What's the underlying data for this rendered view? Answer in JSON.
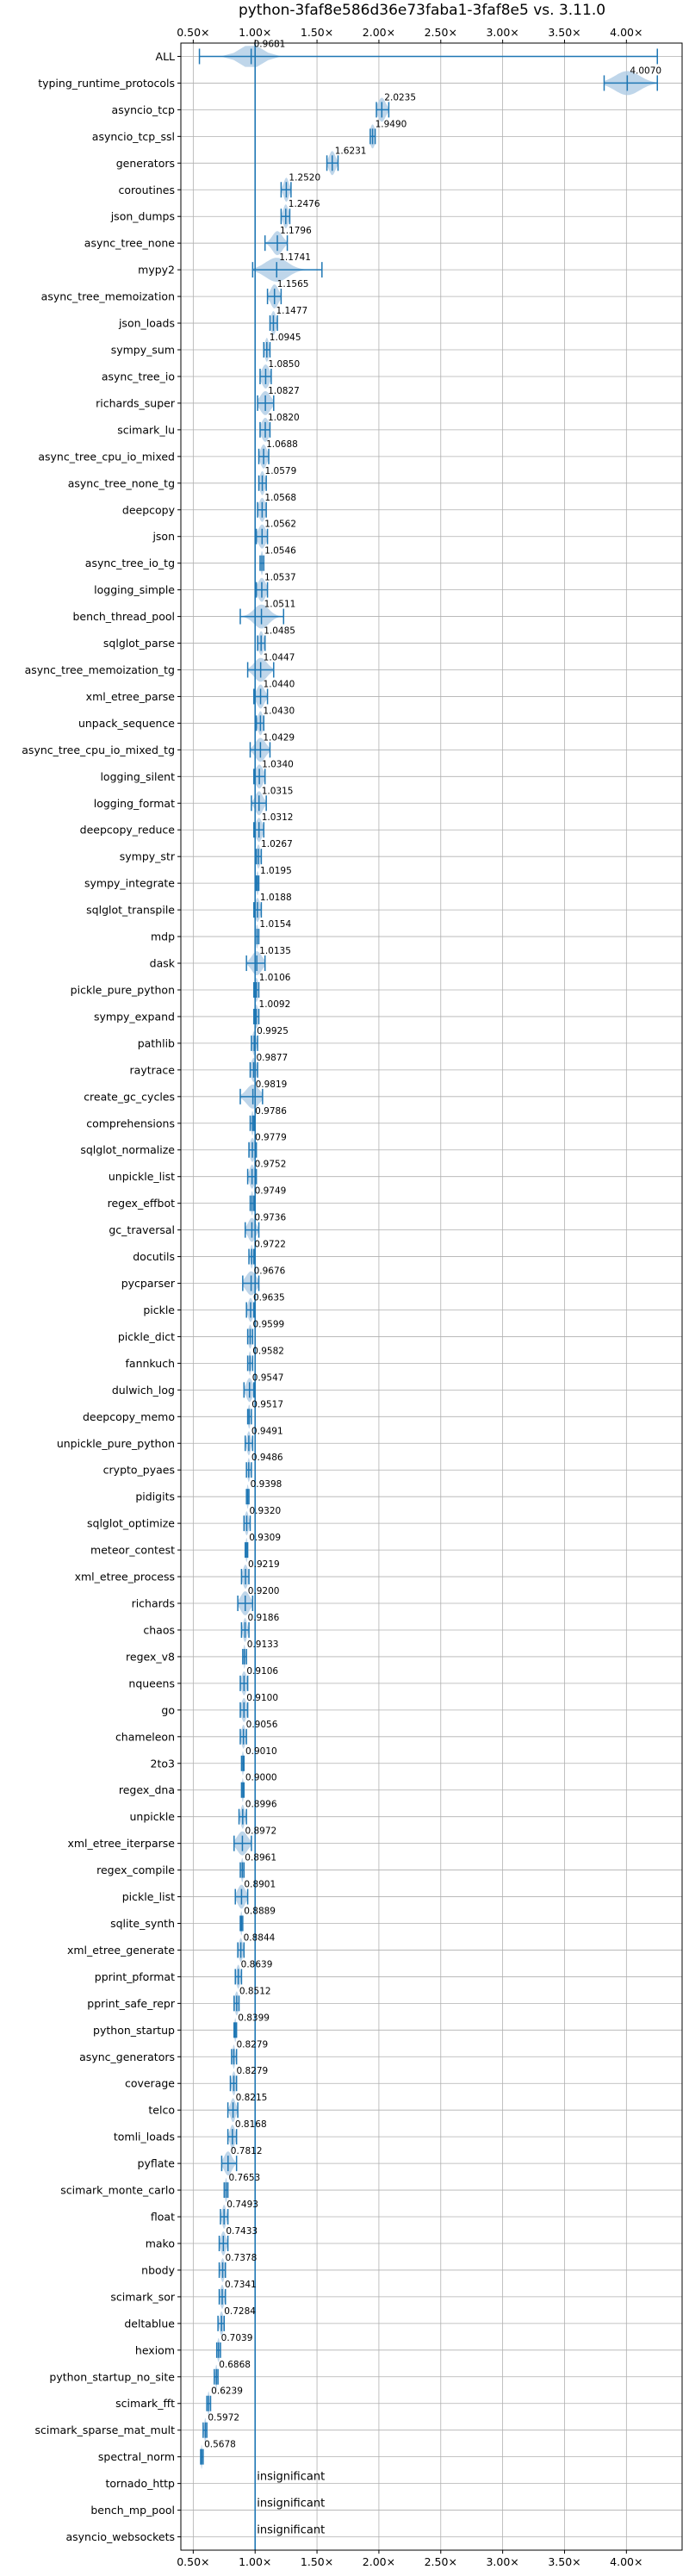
{
  "chart_data": {
    "type": "violin",
    "title": "python-3faf8e586d36e73faba1-3faf8e5 vs. 3.11.0",
    "xlabel": "",
    "ylabel": "",
    "xlim": [
      0.4,
      4.45
    ],
    "xticks": [
      0.5,
      1.0,
      1.5,
      2.0,
      2.5,
      3.0,
      3.5,
      4.0
    ],
    "xtick_labels": [
      "0.50×",
      "1.00×",
      "1.50×",
      "2.00×",
      "2.50×",
      "3.00×",
      "3.50×",
      "4.00×"
    ],
    "reference_line": 1.0,
    "grid": true,
    "colors": {
      "line": "#1f77b4",
      "violin": "#a9c8e3",
      "grid": "#b0b0b0",
      "reference": "#1f77b4"
    },
    "insignificant_label": "insignificant",
    "benchmarks": [
      {
        "name": "ALL",
        "median": 0.9681,
        "label": "0.9681",
        "min": 0.55,
        "max": 4.25,
        "spread": 0.09
      },
      {
        "name": "typing_runtime_protocols",
        "median": 4.007,
        "label": "4.0070",
        "min": 3.82,
        "max": 4.25,
        "spread": 0.1
      },
      {
        "name": "asyncio_tcp",
        "median": 2.0235,
        "label": "2.0235",
        "min": 1.98,
        "max": 2.08,
        "spread": 0.03
      },
      {
        "name": "asyncio_tcp_ssl",
        "median": 1.949,
        "label": "1.9490",
        "min": 1.93,
        "max": 1.97,
        "spread": 0.02
      },
      {
        "name": "generators",
        "median": 1.6231,
        "label": "1.6231",
        "min": 1.58,
        "max": 1.67,
        "spread": 0.025
      },
      {
        "name": "coroutines",
        "median": 1.252,
        "label": "1.2520",
        "min": 1.21,
        "max": 1.29,
        "spread": 0.02
      },
      {
        "name": "json_dumps",
        "median": 1.2476,
        "label": "1.2476",
        "min": 1.21,
        "max": 1.28,
        "spread": 0.02
      },
      {
        "name": "async_tree_none",
        "median": 1.1796,
        "label": "1.1796",
        "min": 1.08,
        "max": 1.26,
        "spread": 0.04
      },
      {
        "name": "mypy2",
        "median": 1.1741,
        "label": "1.1741",
        "min": 0.98,
        "max": 1.54,
        "spread": 0.09
      },
      {
        "name": "async_tree_memoization",
        "median": 1.1565,
        "label": "1.1565",
        "min": 1.1,
        "max": 1.21,
        "spread": 0.03
      },
      {
        "name": "json_loads",
        "median": 1.1477,
        "label": "1.1477",
        "min": 1.12,
        "max": 1.18,
        "spread": 0.02
      },
      {
        "name": "sympy_sum",
        "median": 1.0945,
        "label": "1.0945",
        "min": 1.07,
        "max": 1.12,
        "spread": 0.015
      },
      {
        "name": "async_tree_io",
        "median": 1.085,
        "label": "1.0850",
        "min": 1.04,
        "max": 1.13,
        "spread": 0.03
      },
      {
        "name": "richards_super",
        "median": 1.0827,
        "label": "1.0827",
        "min": 1.02,
        "max": 1.15,
        "spread": 0.04
      },
      {
        "name": "scimark_lu",
        "median": 1.082,
        "label": "1.0820",
        "min": 1.04,
        "max": 1.12,
        "spread": 0.03
      },
      {
        "name": "async_tree_cpu_io_mixed",
        "median": 1.0688,
        "label": "1.0688",
        "min": 1.03,
        "max": 1.11,
        "spread": 0.025
      },
      {
        "name": "async_tree_none_tg",
        "median": 1.0579,
        "label": "1.0579",
        "min": 1.03,
        "max": 1.09,
        "spread": 0.02
      },
      {
        "name": "deepcopy",
        "median": 1.0568,
        "label": "1.0568",
        "min": 1.02,
        "max": 1.09,
        "spread": 0.025
      },
      {
        "name": "json",
        "median": 1.0562,
        "label": "1.0562",
        "min": 1.01,
        "max": 1.1,
        "spread": 0.03
      },
      {
        "name": "async_tree_io_tg",
        "median": 1.0546,
        "label": "1.0546",
        "min": 1.04,
        "max": 1.07,
        "spread": 0.01
      },
      {
        "name": "logging_simple",
        "median": 1.0537,
        "label": "1.0537",
        "min": 1.01,
        "max": 1.1,
        "spread": 0.03
      },
      {
        "name": "bench_thread_pool",
        "median": 1.0511,
        "label": "1.0511",
        "min": 0.88,
        "max": 1.23,
        "spread": 0.06
      },
      {
        "name": "sqlglot_parse",
        "median": 1.0485,
        "label": "1.0485",
        "min": 1.02,
        "max": 1.08,
        "spread": 0.02
      },
      {
        "name": "async_tree_memoization_tg",
        "median": 1.0447,
        "label": "1.0447",
        "min": 0.94,
        "max": 1.15,
        "spread": 0.05
      },
      {
        "name": "xml_etree_parse",
        "median": 1.044,
        "label": "1.0440",
        "min": 0.99,
        "max": 1.1,
        "spread": 0.03
      },
      {
        "name": "unpack_sequence",
        "median": 1.043,
        "label": "1.0430",
        "min": 1.01,
        "max": 1.07,
        "spread": 0.02
      },
      {
        "name": "async_tree_cpu_io_mixed_tg",
        "median": 1.0429,
        "label": "1.0429",
        "min": 0.96,
        "max": 1.12,
        "spread": 0.04
      },
      {
        "name": "logging_silent",
        "median": 1.034,
        "label": "1.0340",
        "min": 0.99,
        "max": 1.08,
        "spread": 0.03
      },
      {
        "name": "logging_format",
        "median": 1.0315,
        "label": "1.0315",
        "min": 0.97,
        "max": 1.09,
        "spread": 0.03
      },
      {
        "name": "deepcopy_reduce",
        "median": 1.0312,
        "label": "1.0312",
        "min": 0.99,
        "max": 1.07,
        "spread": 0.025
      },
      {
        "name": "sympy_str",
        "median": 1.0267,
        "label": "1.0267",
        "min": 1.01,
        "max": 1.05,
        "spread": 0.015
      },
      {
        "name": "sympy_integrate",
        "median": 1.0195,
        "label": "1.0195",
        "min": 1.01,
        "max": 1.03,
        "spread": 0.01
      },
      {
        "name": "sqlglot_transpile",
        "median": 1.0188,
        "label": "1.0188",
        "min": 0.99,
        "max": 1.05,
        "spread": 0.02
      },
      {
        "name": "mdp",
        "median": 1.0154,
        "label": "1.0154",
        "min": 1.0,
        "max": 1.03,
        "spread": 0.01
      },
      {
        "name": "dask",
        "median": 1.0135,
        "label": "1.0135",
        "min": 0.93,
        "max": 1.08,
        "spread": 0.04
      },
      {
        "name": "pickle_pure_python",
        "median": 1.0106,
        "label": "1.0106",
        "min": 0.99,
        "max": 1.03,
        "spread": 0.015
      },
      {
        "name": "sympy_expand",
        "median": 1.0092,
        "label": "1.0092",
        "min": 0.99,
        "max": 1.03,
        "spread": 0.015
      },
      {
        "name": "pathlib",
        "median": 0.9925,
        "label": "0.9925",
        "min": 0.97,
        "max": 1.02,
        "spread": 0.015
      },
      {
        "name": "raytrace",
        "median": 0.9877,
        "label": "0.9877",
        "min": 0.96,
        "max": 1.02,
        "spread": 0.02
      },
      {
        "name": "create_gc_cycles",
        "median": 0.9819,
        "label": "0.9819",
        "min": 0.88,
        "max": 1.06,
        "spread": 0.05
      },
      {
        "name": "comprehensions",
        "median": 0.9786,
        "label": "0.9786",
        "min": 0.96,
        "max": 0.99,
        "spread": 0.01
      },
      {
        "name": "sqlglot_normalize",
        "median": 0.9779,
        "label": "0.9779",
        "min": 0.95,
        "max": 1.01,
        "spread": 0.02
      },
      {
        "name": "unpickle_list",
        "median": 0.9752,
        "label": "0.9752",
        "min": 0.94,
        "max": 1.01,
        "spread": 0.02
      },
      {
        "name": "regex_effbot",
        "median": 0.9749,
        "label": "0.9749",
        "min": 0.96,
        "max": 0.99,
        "spread": 0.01
      },
      {
        "name": "gc_traversal",
        "median": 0.9736,
        "label": "0.9736",
        "min": 0.92,
        "max": 1.03,
        "spread": 0.03
      },
      {
        "name": "docutils",
        "median": 0.9722,
        "label": "0.9722",
        "min": 0.95,
        "max": 0.99,
        "spread": 0.01
      },
      {
        "name": "pycparser",
        "median": 0.9676,
        "label": "0.9676",
        "min": 0.9,
        "max": 1.03,
        "spread": 0.04
      },
      {
        "name": "pickle",
        "median": 0.9635,
        "label": "0.9635",
        "min": 0.93,
        "max": 0.99,
        "spread": 0.02
      },
      {
        "name": "pickle_dict",
        "median": 0.9599,
        "label": "0.9599",
        "min": 0.94,
        "max": 0.98,
        "spread": 0.015
      },
      {
        "name": "fannkuch",
        "median": 0.9582,
        "label": "0.9582",
        "min": 0.94,
        "max": 0.98,
        "spread": 0.01
      },
      {
        "name": "dulwich_log",
        "median": 0.9547,
        "label": "0.9547",
        "min": 0.91,
        "max": 0.99,
        "spread": 0.025
      },
      {
        "name": "deepcopy_memo",
        "median": 0.9517,
        "label": "0.9517",
        "min": 0.94,
        "max": 0.97,
        "spread": 0.01
      },
      {
        "name": "unpickle_pure_python",
        "median": 0.9491,
        "label": "0.9491",
        "min": 0.92,
        "max": 0.98,
        "spread": 0.015
      },
      {
        "name": "crypto_pyaes",
        "median": 0.9486,
        "label": "0.9486",
        "min": 0.93,
        "max": 0.97,
        "spread": 0.01
      },
      {
        "name": "pidigits",
        "median": 0.9398,
        "label": "0.9398",
        "min": 0.93,
        "max": 0.95,
        "spread": 0.008
      },
      {
        "name": "sqlglot_optimize",
        "median": 0.932,
        "label": "0.9320",
        "min": 0.91,
        "max": 0.96,
        "spread": 0.015
      },
      {
        "name": "meteor_contest",
        "median": 0.9309,
        "label": "0.9309",
        "min": 0.92,
        "max": 0.94,
        "spread": 0.008
      },
      {
        "name": "xml_etree_process",
        "median": 0.9219,
        "label": "0.9219",
        "min": 0.89,
        "max": 0.95,
        "spread": 0.02
      },
      {
        "name": "richards",
        "median": 0.92,
        "label": "0.9200",
        "min": 0.86,
        "max": 0.98,
        "spread": 0.035
      },
      {
        "name": "chaos",
        "median": 0.9186,
        "label": "0.9186",
        "min": 0.89,
        "max": 0.95,
        "spread": 0.015
      },
      {
        "name": "regex_v8",
        "median": 0.9133,
        "label": "0.9133",
        "min": 0.9,
        "max": 0.93,
        "spread": 0.008
      },
      {
        "name": "nqueens",
        "median": 0.9106,
        "label": "0.9106",
        "min": 0.88,
        "max": 0.94,
        "spread": 0.02
      },
      {
        "name": "go",
        "median": 0.91,
        "label": "0.9100",
        "min": 0.88,
        "max": 0.94,
        "spread": 0.02
      },
      {
        "name": "chameleon",
        "median": 0.9056,
        "label": "0.9056",
        "min": 0.88,
        "max": 0.93,
        "spread": 0.015
      },
      {
        "name": "2to3",
        "median": 0.901,
        "label": "0.9010",
        "min": 0.89,
        "max": 0.91,
        "spread": 0.008
      },
      {
        "name": "regex_dna",
        "median": 0.9,
        "label": "0.9000",
        "min": 0.89,
        "max": 0.91,
        "spread": 0.008
      },
      {
        "name": "unpickle",
        "median": 0.8996,
        "label": "0.8996",
        "min": 0.87,
        "max": 0.93,
        "spread": 0.015
      },
      {
        "name": "xml_etree_iterparse",
        "median": 0.8972,
        "label": "0.8972",
        "min": 0.83,
        "max": 0.97,
        "spread": 0.04
      },
      {
        "name": "regex_compile",
        "median": 0.8961,
        "label": "0.8961",
        "min": 0.88,
        "max": 0.91,
        "spread": 0.01
      },
      {
        "name": "pickle_list",
        "median": 0.8901,
        "label": "0.8901",
        "min": 0.84,
        "max": 0.94,
        "spread": 0.03
      },
      {
        "name": "sqlite_synth",
        "median": 0.8889,
        "label": "0.8889",
        "min": 0.88,
        "max": 0.9,
        "spread": 0.008
      },
      {
        "name": "xml_etree_generate",
        "median": 0.8844,
        "label": "0.8844",
        "min": 0.86,
        "max": 0.91,
        "spread": 0.015
      },
      {
        "name": "pprint_pformat",
        "median": 0.8639,
        "label": "0.8639",
        "min": 0.84,
        "max": 0.89,
        "spread": 0.015
      },
      {
        "name": "pprint_safe_repr",
        "median": 0.8512,
        "label": "0.8512",
        "min": 0.83,
        "max": 0.87,
        "spread": 0.015
      },
      {
        "name": "python_startup",
        "median": 0.8399,
        "label": "0.8399",
        "min": 0.83,
        "max": 0.85,
        "spread": 0.008
      },
      {
        "name": "async_generators",
        "median": 0.8279,
        "label": "0.8279",
        "min": 0.81,
        "max": 0.85,
        "spread": 0.01
      },
      {
        "name": "coverage",
        "median": 0.8279,
        "label": "0.8279",
        "min": 0.8,
        "max": 0.85,
        "spread": 0.015
      },
      {
        "name": "telco",
        "median": 0.8215,
        "label": "0.8215",
        "min": 0.78,
        "max": 0.86,
        "spread": 0.02
      },
      {
        "name": "tomli_loads",
        "median": 0.8168,
        "label": "0.8168",
        "min": 0.78,
        "max": 0.85,
        "spread": 0.02
      },
      {
        "name": "pyflate",
        "median": 0.7812,
        "label": "0.7812",
        "min": 0.73,
        "max": 0.85,
        "spread": 0.03
      },
      {
        "name": "scimark_monte_carlo",
        "median": 0.7653,
        "label": "0.7653",
        "min": 0.75,
        "max": 0.78,
        "spread": 0.01
      },
      {
        "name": "float",
        "median": 0.7493,
        "label": "0.7493",
        "min": 0.72,
        "max": 0.78,
        "spread": 0.015
      },
      {
        "name": "mako",
        "median": 0.7433,
        "label": "0.7433",
        "min": 0.71,
        "max": 0.78,
        "spread": 0.02
      },
      {
        "name": "nbody",
        "median": 0.7378,
        "label": "0.7378",
        "min": 0.71,
        "max": 0.76,
        "spread": 0.015
      },
      {
        "name": "scimark_sor",
        "median": 0.7341,
        "label": "0.7341",
        "min": 0.71,
        "max": 0.76,
        "spread": 0.015
      },
      {
        "name": "deltablue",
        "median": 0.7284,
        "label": "0.7284",
        "min": 0.7,
        "max": 0.75,
        "spread": 0.015
      },
      {
        "name": "hexiom",
        "median": 0.7039,
        "label": "0.7039",
        "min": 0.69,
        "max": 0.72,
        "spread": 0.01
      },
      {
        "name": "python_startup_no_site",
        "median": 0.6868,
        "label": "0.6868",
        "min": 0.67,
        "max": 0.7,
        "spread": 0.008
      },
      {
        "name": "scimark_fft",
        "median": 0.6239,
        "label": "0.6239",
        "min": 0.61,
        "max": 0.64,
        "spread": 0.008
      },
      {
        "name": "scimark_sparse_mat_mult",
        "median": 0.5972,
        "label": "0.5972",
        "min": 0.58,
        "max": 0.61,
        "spread": 0.008
      },
      {
        "name": "spectral_norm",
        "median": 0.5678,
        "label": "0.5678",
        "min": 0.56,
        "max": 0.58,
        "spread": 0.006
      },
      {
        "name": "tornado_http",
        "median": null,
        "label": "",
        "insignificant": true
      },
      {
        "name": "bench_mp_pool",
        "median": null,
        "label": "",
        "insignificant": true
      },
      {
        "name": "asyncio_websockets",
        "median": null,
        "label": "",
        "insignificant": true
      }
    ]
  }
}
